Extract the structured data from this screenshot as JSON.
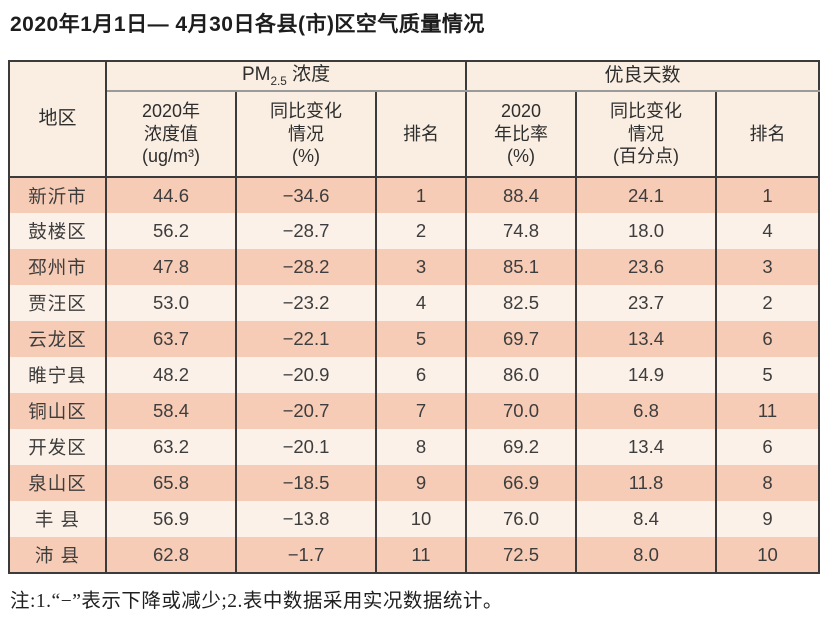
{
  "title": "2020年1月1日— 4月30日各县(市)区空气质量情况",
  "table": {
    "region_header": "地区",
    "group_pm": {
      "prefix": "PM",
      "sub": "2.5",
      "suffix": " 浓度"
    },
    "group_days": {
      "label": "优良天数"
    },
    "subheaders": {
      "pm_value": "2020年\n浓度值\n(ug/m³)",
      "pm_change": "同比变化\n情况\n(%)",
      "pm_rank": "排名",
      "days_ratio": "2020\n年比率\n(%)",
      "days_change": "同比变化\n情况\n(百分点)",
      "days_rank": "排名"
    },
    "cell_names": [
      "cell-region",
      "cell-pm-value",
      "cell-pm-change",
      "cell-pm-rank",
      "cell-days-ratio",
      "cell-days-change",
      "cell-days-rank"
    ],
    "rows": [
      [
        "新沂市",
        "44.6",
        "−34.6",
        "1",
        "88.4",
        "24.1",
        "1"
      ],
      [
        "鼓楼区",
        "56.2",
        "−28.7",
        "2",
        "74.8",
        "18.0",
        "4"
      ],
      [
        "邳州市",
        "47.8",
        "−28.2",
        "3",
        "85.1",
        "23.6",
        "3"
      ],
      [
        "贾汪区",
        "53.0",
        "−23.2",
        "4",
        "82.5",
        "23.7",
        "2"
      ],
      [
        "云龙区",
        "63.7",
        "−22.1",
        "5",
        "69.7",
        "13.4",
        "6"
      ],
      [
        "睢宁县",
        "48.2",
        "−20.9",
        "6",
        "86.0",
        "14.9",
        "5"
      ],
      [
        "铜山区",
        "58.4",
        "−20.7",
        "7",
        "70.0",
        "6.8",
        "11"
      ],
      [
        "开发区",
        "63.2",
        "−20.1",
        "8",
        "69.2",
        "13.4",
        "6"
      ],
      [
        "泉山区",
        "65.8",
        "−18.5",
        "9",
        "66.9",
        "11.8",
        "8"
      ],
      [
        "丰 县",
        "56.9",
        "−13.8",
        "10",
        "76.0",
        "8.4",
        "9"
      ],
      [
        "沛 县",
        "62.8",
        "−1.7",
        "11",
        "72.5",
        "8.0",
        "10"
      ]
    ]
  },
  "note": "注:1.“−”表示下降或减少;2.表中数据采用实况数据统计。",
  "colors": {
    "row_odd": "#f7ccb6",
    "row_even": "#fcf1e8",
    "header_bg": "#faeee2",
    "border_dark": "#3b3b3b",
    "border_gray": "#9a9a9a"
  }
}
